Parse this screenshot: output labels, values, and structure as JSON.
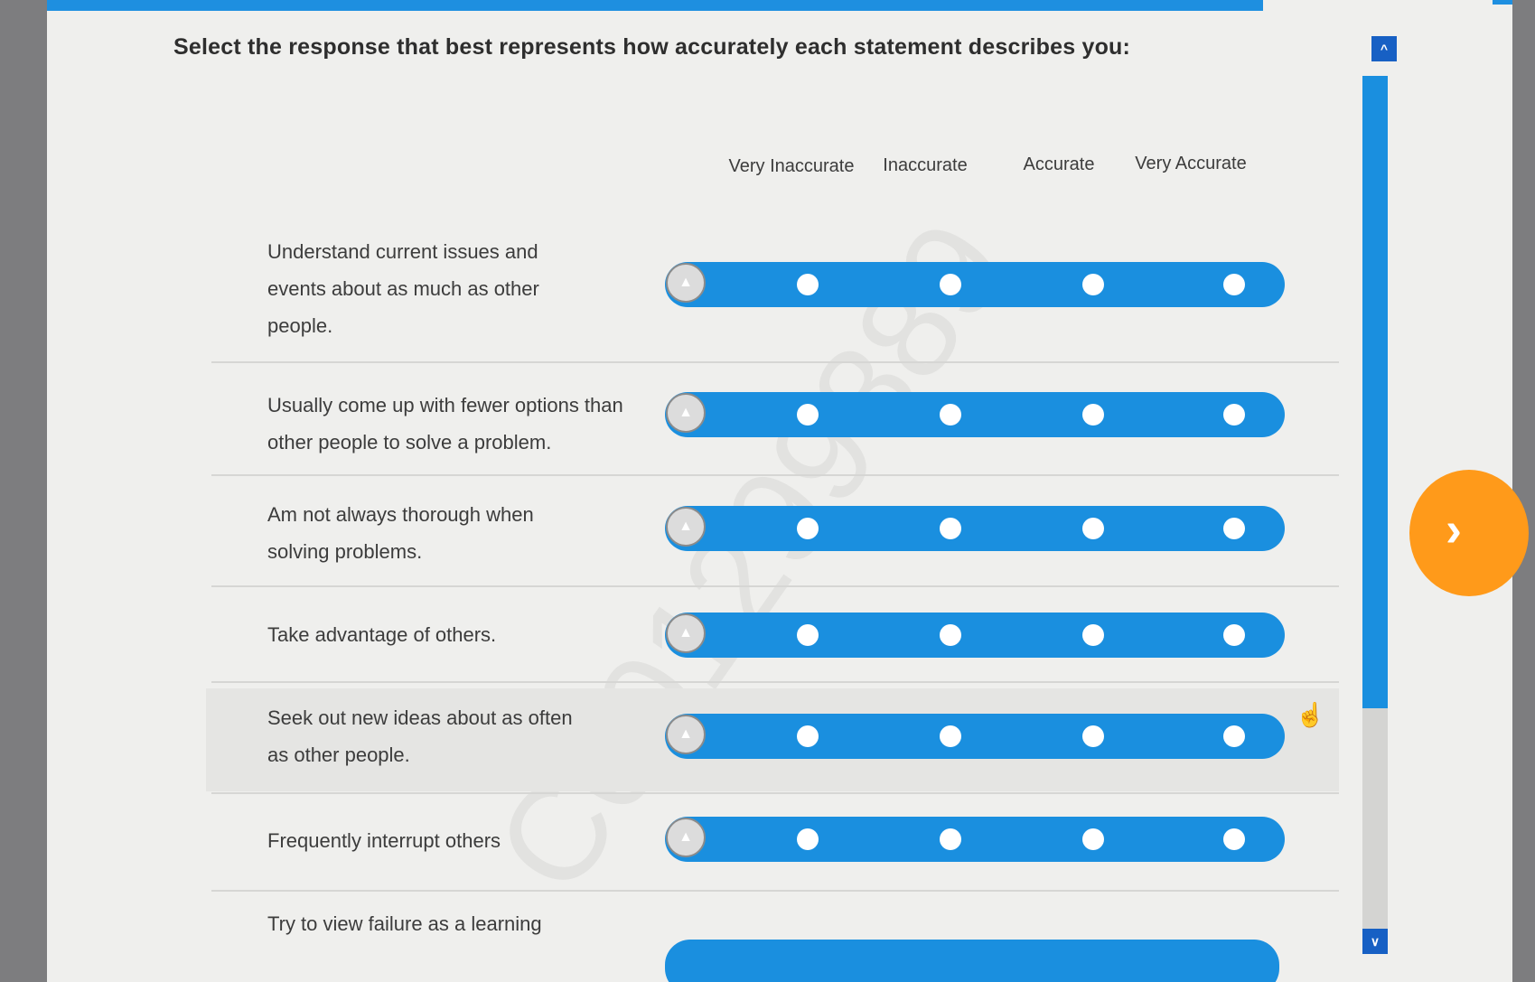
{
  "heading": "Select the response that best represents how accurately each statement describes you:",
  "columns": [
    "Very Inaccurate",
    "Inaccurate",
    "Accurate",
    "Very Accurate"
  ],
  "statements": [
    "Understand current issues and events about as much as other people.",
    "Usually come up with fewer options than other people to solve a problem.",
    "Am not always thorough when solving problems.",
    "Take advantage of others.",
    "Seek out new ideas about as often as other people.",
    "Frequently interrupt others",
    "Try to view failure as a learning"
  ],
  "watermark": "C001299889",
  "icons": {
    "scroll_up": "chevron-up-icon",
    "scroll_down": "chevron-down-icon",
    "next": "chevron-right-icon",
    "cursor": "hand-pointer-icon"
  },
  "colors": {
    "accent": "#1a8fdf",
    "next_button": "#ff9a1a",
    "scroll_button": "#1760c4"
  }
}
